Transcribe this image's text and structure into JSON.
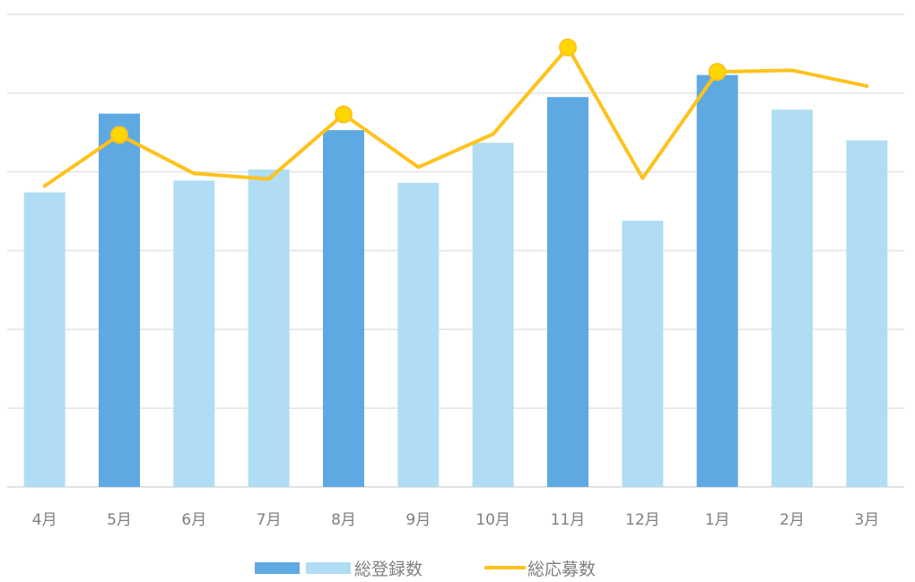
{
  "chart_data": {
    "type": "bar",
    "categories": [
      "4月",
      "5月",
      "6月",
      "7月",
      "8月",
      "9月",
      "10月",
      "11月",
      "12月",
      "1月",
      "2月",
      "3月"
    ],
    "ylim": [
      0,
      6
    ],
    "grid": true,
    "series": [
      {
        "name": "総登録数",
        "type": "bar",
        "values": [
          3.74,
          4.74,
          3.89,
          4.03,
          4.53,
          3.86,
          4.37,
          4.95,
          3.38,
          5.23,
          4.79,
          4.4
        ],
        "highlighted": [
          false,
          true,
          false,
          false,
          true,
          false,
          false,
          true,
          false,
          true,
          false,
          false
        ],
        "color": "#5ea9e2",
        "highlight_color": "#5ea9e2",
        "normal_color": "#b1ddf4"
      },
      {
        "name": "総応募数",
        "type": "line",
        "values": [
          3.82,
          4.47,
          3.98,
          3.91,
          4.73,
          4.06,
          4.48,
          5.58,
          3.92,
          5.27,
          5.29,
          5.09
        ],
        "markers": [
          false,
          true,
          false,
          false,
          true,
          false,
          false,
          true,
          false,
          true,
          false,
          false
        ],
        "color": "#ffc21c",
        "marker_color": "#ffd700"
      }
    ],
    "legend": {
      "position": "bottom",
      "entries": [
        "総登録数",
        "総応募数"
      ]
    }
  }
}
